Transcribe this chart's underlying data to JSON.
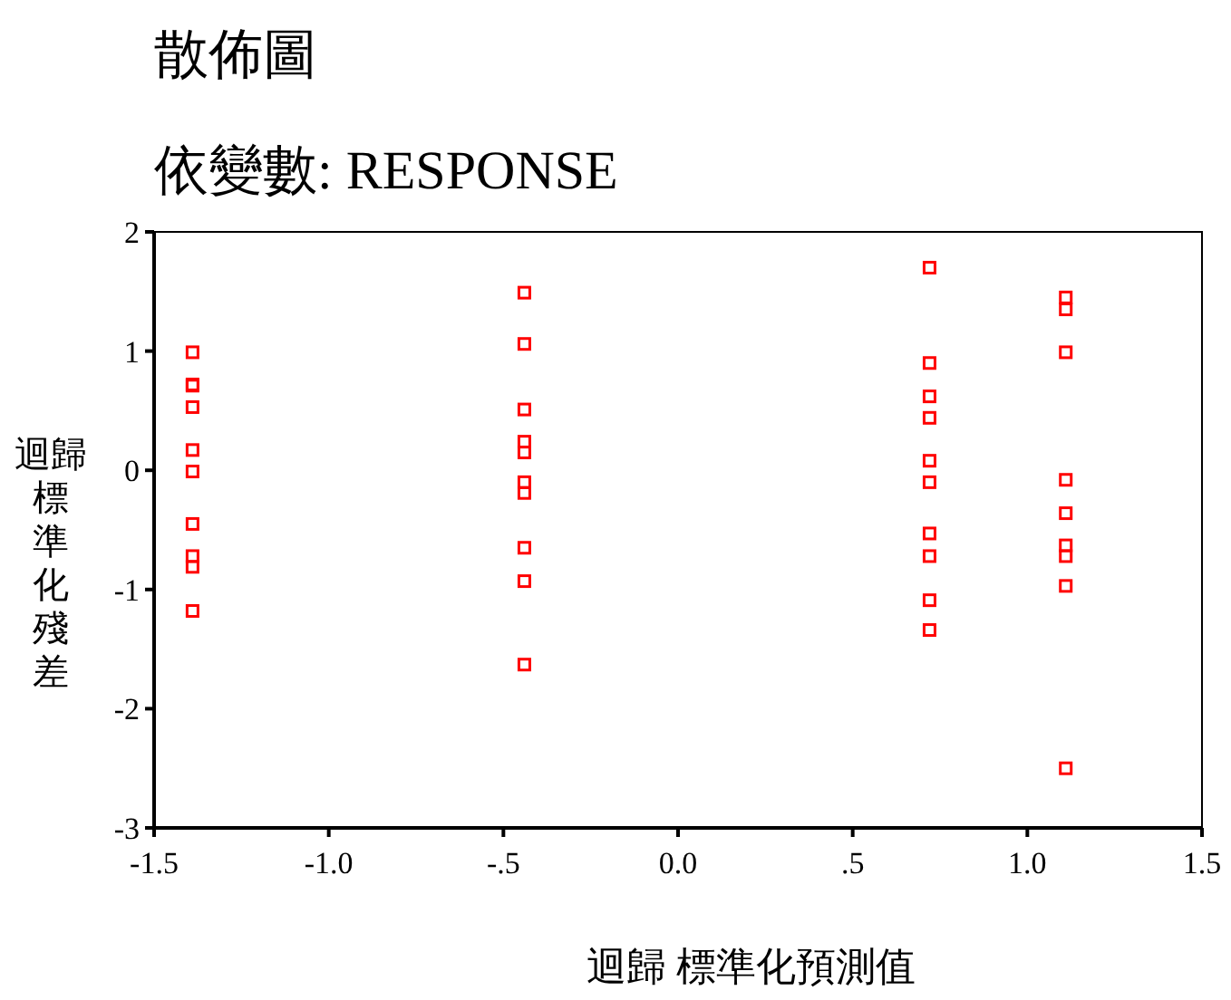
{
  "chart_data": {
    "type": "scatter",
    "title": "散佈圖",
    "subtitle": "依變數: RESPONSE",
    "xlabel": "迴歸 標準化預測值",
    "ylabel": "迴歸標準化殘差",
    "x": [
      -1.39,
      -1.39,
      -1.39,
      -1.39,
      -1.39,
      -1.39,
      -1.39,
      -1.39,
      -1.39,
      -1.39,
      -0.44,
      -0.44,
      -0.44,
      -0.44,
      -0.44,
      -0.44,
      -0.44,
      -0.44,
      -0.44,
      -0.44,
      0.72,
      0.72,
      0.72,
      0.72,
      0.72,
      0.72,
      0.72,
      0.72,
      0.72,
      0.72,
      1.11,
      1.11,
      1.11,
      1.11,
      1.11,
      1.11,
      1.11,
      1.11,
      1.11
    ],
    "series": [
      {
        "color": "#ff0000",
        "values": [
          0.99,
          0.72,
          0.71,
          0.53,
          0.17,
          -0.01,
          -0.45,
          -0.72,
          -0.81,
          -1.18,
          1.49,
          1.06,
          0.51,
          0.24,
          0.15,
          -0.1,
          -0.19,
          -0.65,
          -0.93,
          -1.63,
          1.7,
          0.9,
          0.62,
          0.44,
          0.08,
          -0.1,
          -0.53,
          -0.72,
          -1.09,
          -1.34,
          1.45,
          1.35,
          0.99,
          -0.08,
          -0.36,
          -0.63,
          -0.72,
          -0.97,
          -2.5
        ]
      }
    ],
    "xlim": [
      -1.5,
      1.5
    ],
    "ylim": [
      -3,
      2
    ],
    "xticks": [
      {
        "value": -1.5,
        "label": "-1.5"
      },
      {
        "value": -1,
        "label": "-1.0"
      },
      {
        "value": -0.5,
        "label": "-.5"
      },
      {
        "value": 0,
        "label": "0.0"
      },
      {
        "value": 0.5,
        "label": ".5"
      },
      {
        "value": 1,
        "label": "1.0"
      },
      {
        "value": 1.5,
        "label": "1.5"
      }
    ],
    "yticks": [
      2,
      1,
      0,
      -1,
      -2,
      -3
    ],
    "marker": "square",
    "grid": false
  }
}
